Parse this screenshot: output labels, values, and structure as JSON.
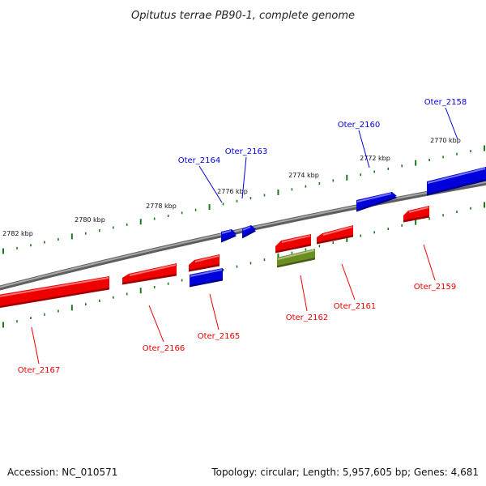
{
  "title": "Opitutus terrae PB90-1, complete genome",
  "footer": {
    "accession": "Accession: NC_010571",
    "stats": "Topology: circular; Length: 5,957,605 bp; Genes: 4,681"
  },
  "colors": {
    "forward": "#0000dd",
    "reverse": "#ee0000",
    "other": "#6b8e23",
    "backbone": "#888888",
    "ticks": "#1a7a1a"
  },
  "chart_data": {
    "type": "diagram",
    "scale_labels": [
      "2782 kbp",
      "2780 kbp",
      "2778 kbp",
      "2776 kbp",
      "2774 kbp",
      "2772 kbp",
      "2770 kbp"
    ],
    "genes": [
      {
        "id": "Oter_2158",
        "strand": "forward",
        "color": "blue"
      },
      {
        "id": "Oter_2160",
        "strand": "forward",
        "color": "blue"
      },
      {
        "id": "Oter_2163",
        "strand": "forward",
        "color": "blue"
      },
      {
        "id": "Oter_2164",
        "strand": "forward",
        "color": "blue"
      },
      {
        "id": "Oter_2165",
        "strand": "reverse",
        "color": "blue"
      },
      {
        "id": "Oter_2159",
        "strand": "reverse",
        "color": "red"
      },
      {
        "id": "Oter_2161",
        "strand": "reverse",
        "color": "red"
      },
      {
        "id": "Oter_2162",
        "strand": "reverse",
        "color": "olive"
      },
      {
        "id": "Oter_2166",
        "strand": "reverse",
        "color": "red"
      },
      {
        "id": "Oter_2167",
        "strand": "reverse",
        "color": "red"
      }
    ]
  }
}
